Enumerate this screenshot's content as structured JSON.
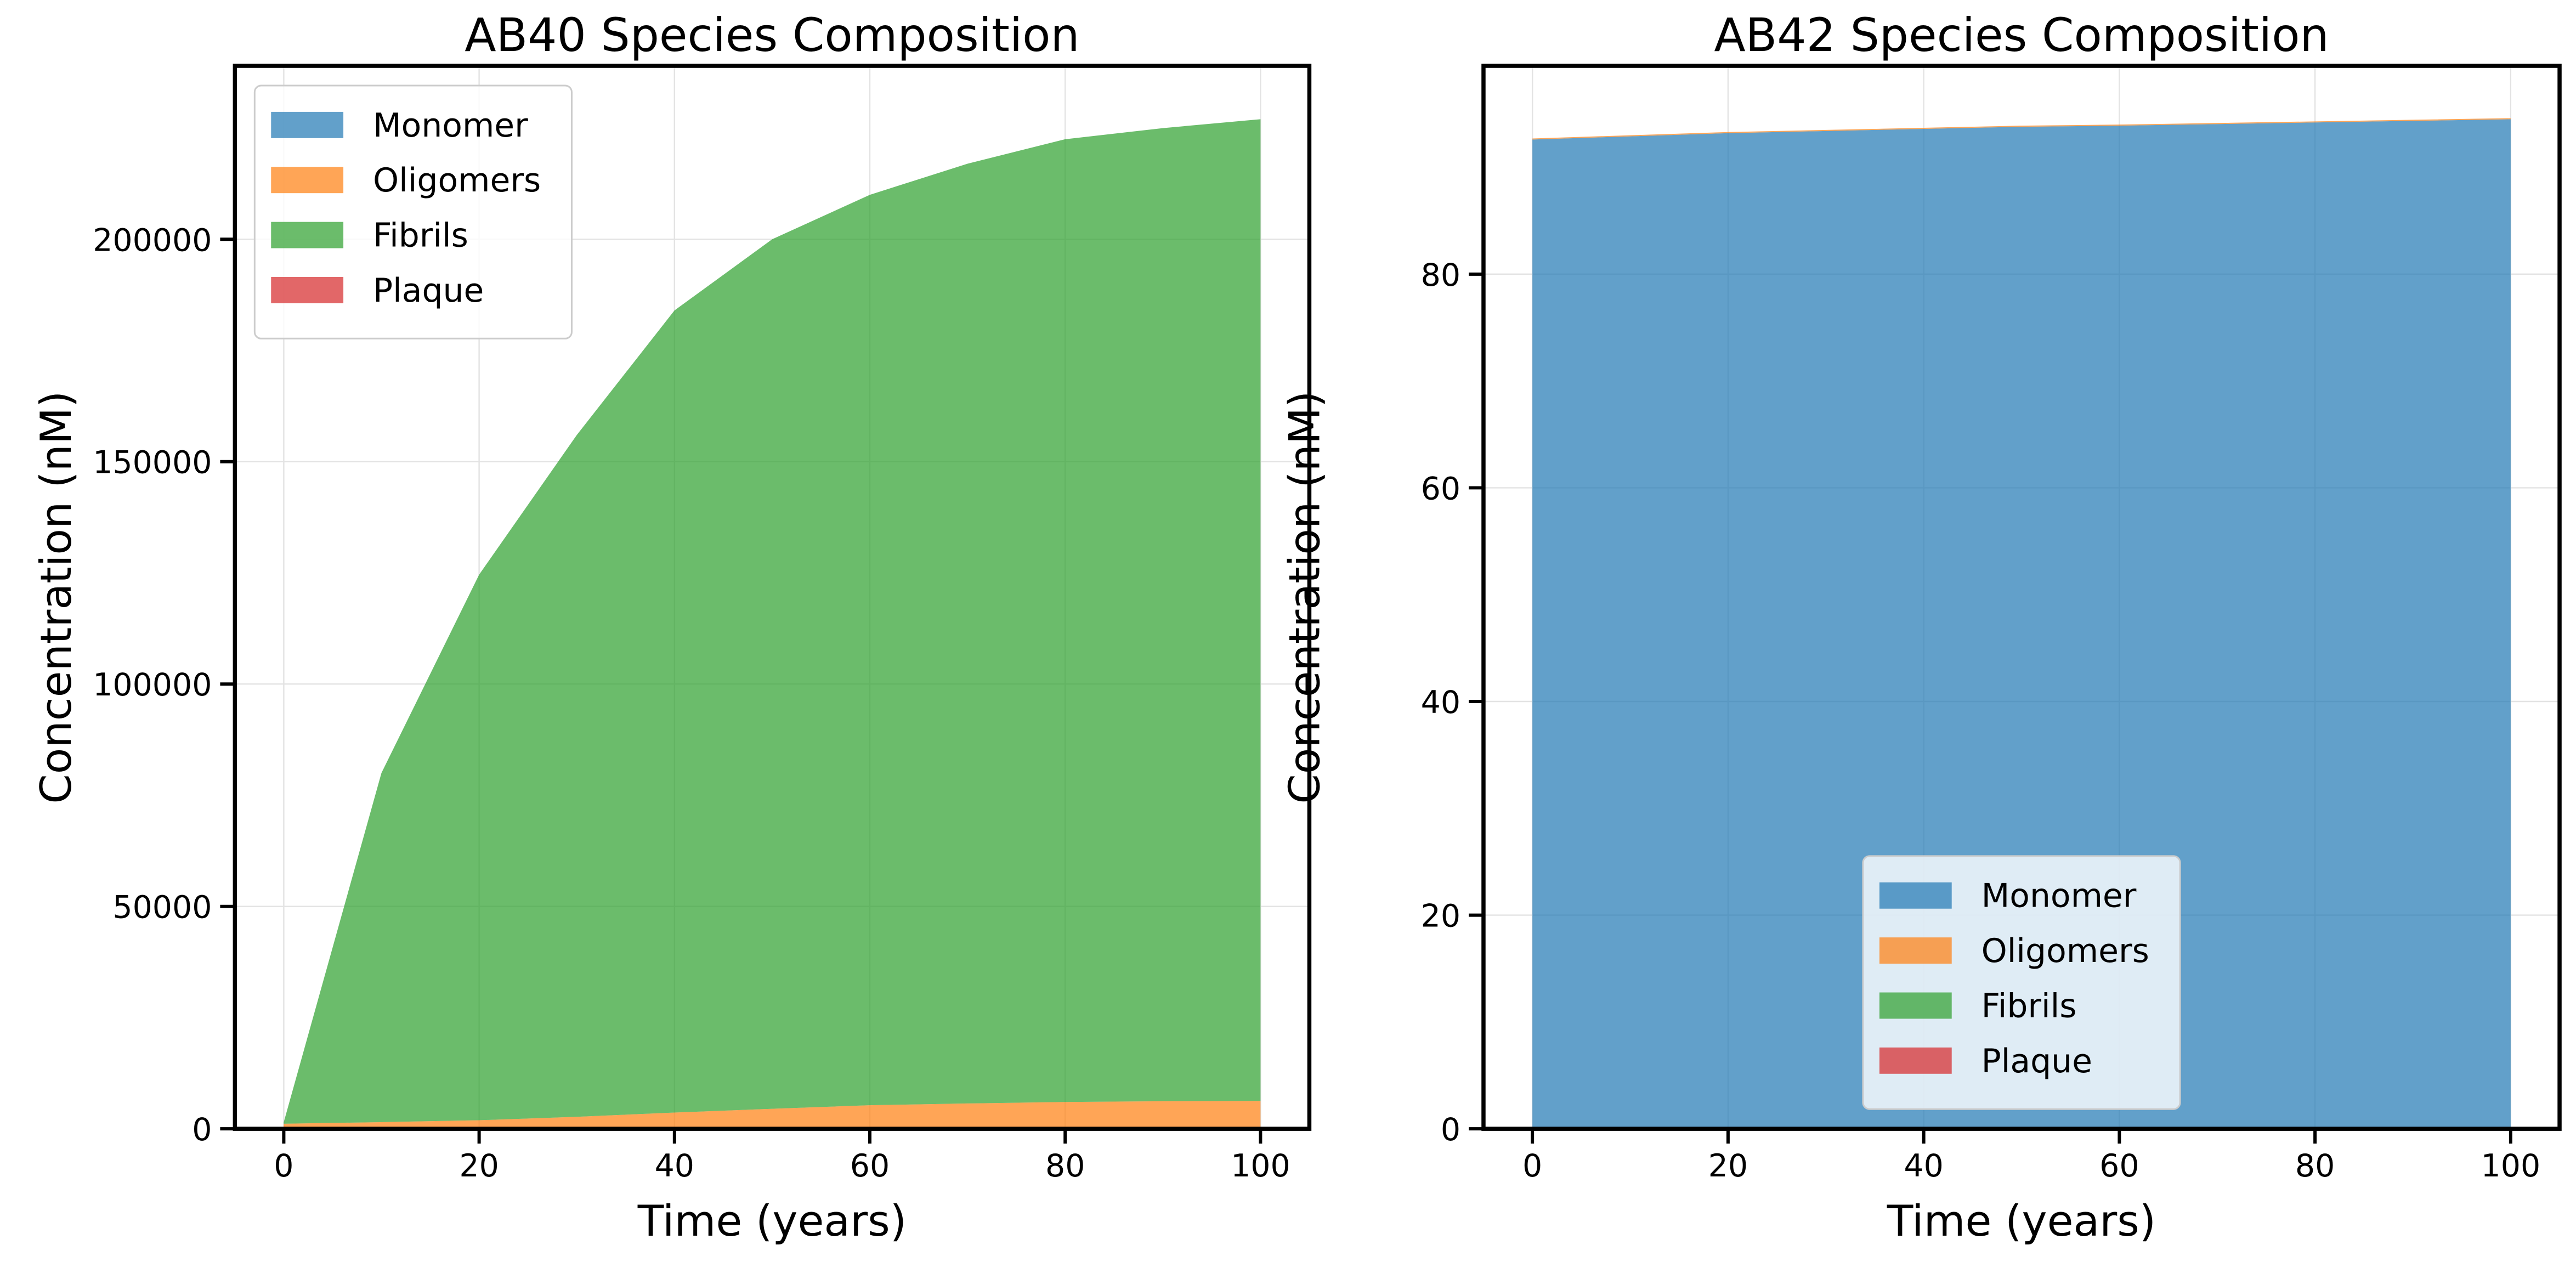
{
  "colors": {
    "Monomer": "#1f77b4",
    "Oligomers": "#ff7f0e",
    "Fibrils": "#2ca02c",
    "Plaque": "#d62728"
  },
  "chart_data": [
    {
      "type": "area",
      "stacked": true,
      "title": "AB40 Species Composition",
      "xlabel": "Time (years)",
      "ylabel": "Concentration (nM)",
      "xlim": [
        -5,
        105
      ],
      "ylim": [
        0,
        239000
      ],
      "xticks": [
        0,
        20,
        40,
        60,
        80,
        100
      ],
      "yticks": [
        0,
        50000,
        100000,
        150000,
        200000
      ],
      "grid": true,
      "legend": "upper-left",
      "x": [
        0,
        10,
        20,
        30,
        40,
        50,
        60,
        70,
        80,
        90,
        100
      ],
      "series": [
        {
          "name": "Monomer",
          "values": [
            370,
            100,
            20,
            0,
            0,
            0,
            0,
            0,
            0,
            0,
            0
          ]
        },
        {
          "name": "Oligomers",
          "values": [
            780,
            1400,
            1910,
            2700,
            3650,
            4500,
            5300,
            5700,
            6030,
            6200,
            6280
          ]
        },
        {
          "name": "Fibrils",
          "values": [
            350,
            78500,
            122670,
            153300,
            180350,
            195500,
            204700,
            211300,
            216470,
            218800,
            220720
          ]
        },
        {
          "name": "Plaque",
          "values": [
            0,
            0,
            0,
            0,
            0,
            0,
            0,
            0,
            0,
            0,
            0
          ]
        }
      ]
    },
    {
      "type": "area",
      "stacked": true,
      "title": "AB42 Species Composition",
      "xlabel": "Time (years)",
      "ylabel": "Concentration (nM)",
      "xlim": [
        -5,
        105
      ],
      "ylim": [
        0,
        99.5
      ],
      "xticks": [
        0,
        20,
        40,
        60,
        80,
        100
      ],
      "yticks": [
        0,
        20,
        40,
        60,
        80
      ],
      "grid": true,
      "legend": "lower-center",
      "x": [
        0,
        10,
        20,
        30,
        40,
        50,
        60,
        70,
        80,
        90,
        100
      ],
      "series": [
        {
          "name": "Monomer",
          "values": [
            92.6,
            92.9,
            93.2,
            93.4,
            93.6,
            93.8,
            93.9,
            94.05,
            94.2,
            94.35,
            94.5
          ]
        },
        {
          "name": "Oligomers",
          "values": [
            0.1,
            0.1,
            0.1,
            0.1,
            0.1,
            0.1,
            0.1,
            0.1,
            0.1,
            0.1,
            0.1
          ]
        },
        {
          "name": "Fibrils",
          "values": [
            0,
            0,
            0,
            0,
            0,
            0,
            0,
            0,
            0,
            0,
            0
          ]
        },
        {
          "name": "Plaque",
          "values": [
            0,
            0,
            0,
            0,
            0,
            0,
            0,
            0,
            0,
            0,
            0
          ]
        }
      ]
    }
  ]
}
